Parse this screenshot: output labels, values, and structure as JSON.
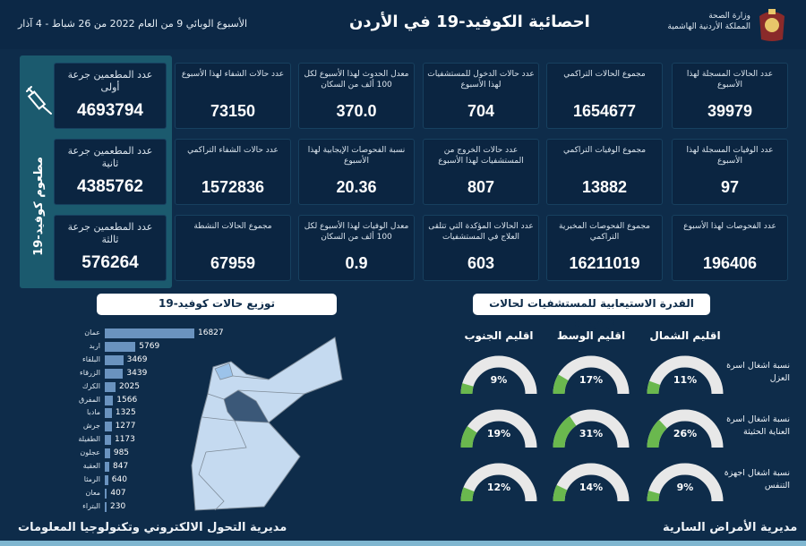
{
  "header": {
    "ministry_line1": "وزارة الصحة",
    "ministry_line2": "المملكة الأردنية الهاشمية",
    "title": "احصائية الكوفيد-19 في الأردن",
    "subtitle": "الأسبوع الوبائي 9 من العام 2022 من 26 شباط - 4 آذار",
    "logo_icon": "jordan-coat-of-arms"
  },
  "vaccination": {
    "panel_label": "مطعوم كوفيد-19",
    "icon": "syringe-icon",
    "cards": [
      {
        "label": "عدد المطعمين جرعة أولى",
        "value": "4693794"
      },
      {
        "label": "عدد المطعمين جرعة ثانية",
        "value": "4385762"
      },
      {
        "label": "عدد المطعمين جرعة ثالثة",
        "value": "576264"
      }
    ]
  },
  "stats": [
    [
      {
        "label": "عدد حالات الشفاء لهذا الأسبوع",
        "value": "73150"
      },
      {
        "label": "معدل الحدوث لهذا الأسبوع لكل 100 ألف من السكان",
        "value": "370.0"
      },
      {
        "label": "عدد حالات الدخول للمستشفيات لهذا الأسبوع",
        "value": "704"
      },
      {
        "label": "مجموع الحالات التراكمي",
        "value": "1654677"
      },
      {
        "label": "عدد الحالات المسجلة لهذا الأسبوع",
        "value": "39979"
      }
    ],
    [
      {
        "label": "عدد حالات الشفاء التراكمي",
        "value": "1572836"
      },
      {
        "label": "نسبة الفحوصات الإيجابية لهذا الأسبوع",
        "value": "20.36"
      },
      {
        "label": "عدد حالات الخروج من المستشفيات لهذا الأسبوع",
        "value": "807"
      },
      {
        "label": "مجموع الوفيات التراكمي",
        "value": "13882"
      },
      {
        "label": "عدد الوفيات المسجلة لهذا الأسبوع",
        "value": "97"
      }
    ],
    [
      {
        "label": "مجموع الحالات النشطة",
        "value": "67959"
      },
      {
        "label": "معدل الوفيات لهذا الأسبوع لكل 100 ألف من السكان",
        "value": "0.9"
      },
      {
        "label": "عدد الحالات المؤكدة التي تتلقى العلاج في المستشفيات",
        "value": "603"
      },
      {
        "label": "مجموع الفحوصات المخبرية التراكمي",
        "value": "16211019"
      },
      {
        "label": "عدد الفحوصات لهذا الأسبوع",
        "value": "196406"
      }
    ]
  ],
  "distribution": {
    "title": "توزيع حالات كوفيد-19",
    "bar_color": "#6a93bf",
    "map_highlight_color": "#3b5878",
    "map_color": "#c5daf0",
    "categories": [
      "عمان",
      "اربد",
      "البلقاء",
      "الزرقاء",
      "الكرك",
      "المفرق",
      "مادبا",
      "جرش",
      "الطفيلة",
      "عجلون",
      "العقبة",
      "الرمثا",
      "معان",
      "البتراء"
    ],
    "values": [
      16827,
      5769,
      3469,
      3439,
      2025,
      1566,
      1325,
      1277,
      1173,
      985,
      847,
      640,
      407,
      230
    ]
  },
  "capacity": {
    "title": "القدرة الاستيعابية للمستشفيات لحالات كوفيد-19",
    "fill_color": "#6ab84e",
    "track_color": "#e8e8e8",
    "regions": [
      "اقليم الجنوب",
      "اقليم الوسط",
      "اقليم الشمال"
    ],
    "rows": [
      {
        "label": "نسبة اشغال اسرة العزل",
        "values": [
          9,
          17,
          11
        ]
      },
      {
        "label": "نسبة اشغال اسرة العناية الحثيثة",
        "values": [
          19,
          31,
          26
        ]
      },
      {
        "label": "نسبة اشغال اجهزة التنفس",
        "values": [
          12,
          14,
          9
        ]
      }
    ]
  },
  "footer": {
    "left": "مديرية التحول الالكتروني وتكنولوجيا المعلومات",
    "right": "مديرية الأمراض السارية"
  }
}
